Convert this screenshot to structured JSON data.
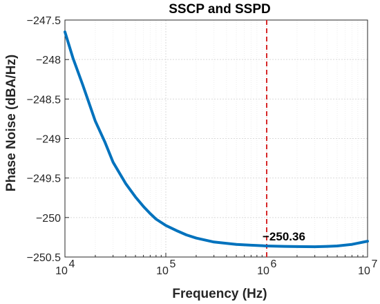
{
  "chart_data": {
    "type": "line",
    "title": "SSCP and SSPD",
    "xlabel": "Frequency (Hz)",
    "ylabel": "Phase Noise (dBA/Hz)",
    "xscale": "log",
    "xlim": [
      10000,
      10000000
    ],
    "ylim": [
      -250.5,
      -247.5
    ],
    "xticks": [
      10000,
      100000,
      1000000,
      10000000
    ],
    "xtick_labels": [
      [
        "10",
        "4"
      ],
      [
        "10",
        "5"
      ],
      [
        "10",
        "6"
      ],
      [
        "10",
        "7"
      ]
    ],
    "yticks": [
      -247.5,
      -248,
      -248.5,
      -249,
      -249.5,
      -250,
      -250.5
    ],
    "ytick_labels": [
      "−247.5",
      "−248",
      "−248.5",
      "−249",
      "−249.5",
      "−250",
      "−250.5"
    ],
    "grid": true,
    "series": [
      {
        "color": "#0072BD",
        "x": [
          10000,
          12000,
          15000,
          20000,
          25000,
          30000,
          40000,
          50000,
          60000,
          70000,
          80000,
          100000,
          130000,
          160000,
          200000,
          300000,
          500000,
          700000,
          1000000,
          1500000,
          2000000,
          3000000,
          4000000,
          5000000,
          7000000,
          10000000
        ],
        "y": [
          -247.65,
          -247.98,
          -248.32,
          -248.78,
          -249.05,
          -249.3,
          -249.57,
          -249.74,
          -249.86,
          -249.95,
          -250.02,
          -250.1,
          -250.17,
          -250.22,
          -250.26,
          -250.31,
          -250.34,
          -250.35,
          -250.36,
          -250.365,
          -250.368,
          -250.37,
          -250.365,
          -250.36,
          -250.34,
          -250.3
        ]
      }
    ],
    "vline": {
      "x": 1000000,
      "color": "#D62728",
      "style": "dashed"
    },
    "annotation": {
      "text": "−250.36",
      "x": 1000000,
      "y": -250.36
    }
  }
}
